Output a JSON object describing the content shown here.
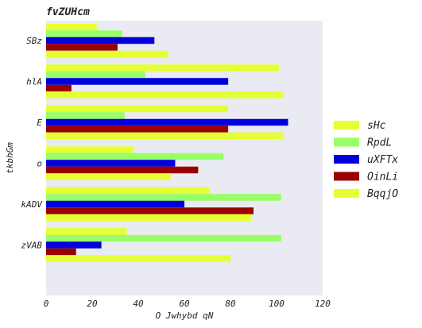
{
  "chart_data": {
    "type": "bar",
    "orientation": "horizontal",
    "title": "fvZUHcm",
    "xlabel": "O Jwhybd qN",
    "ylabel": "tkbhGm",
    "xlim": [
      0,
      120
    ],
    "xticks": [
      0,
      20,
      40,
      60,
      80,
      100,
      120
    ],
    "categories": [
      "SBz",
      "hlA",
      "E",
      "o",
      "kADV",
      "zVAB"
    ],
    "series": [
      {
        "name": "sHc",
        "color": "#e6ff33",
        "values": [
          22,
          101,
          79,
          38,
          71,
          35
        ]
      },
      {
        "name": "RpdL",
        "color": "#99ff66",
        "values": [
          33,
          43,
          34,
          77,
          102,
          102
        ]
      },
      {
        "name": "uXFTx",
        "color": "#0000dd",
        "values": [
          47,
          79,
          105,
          56,
          60,
          24
        ]
      },
      {
        "name": "OinLi",
        "color": "#990000",
        "values": [
          31,
          11,
          79,
          66,
          90,
          13
        ]
      },
      {
        "name": "BqqjO",
        "color": "#e6ff33",
        "values": [
          53,
          103,
          103,
          54,
          89,
          80
        ]
      }
    ],
    "grid": false,
    "legend": "right",
    "background": "#eaeaf2"
  }
}
